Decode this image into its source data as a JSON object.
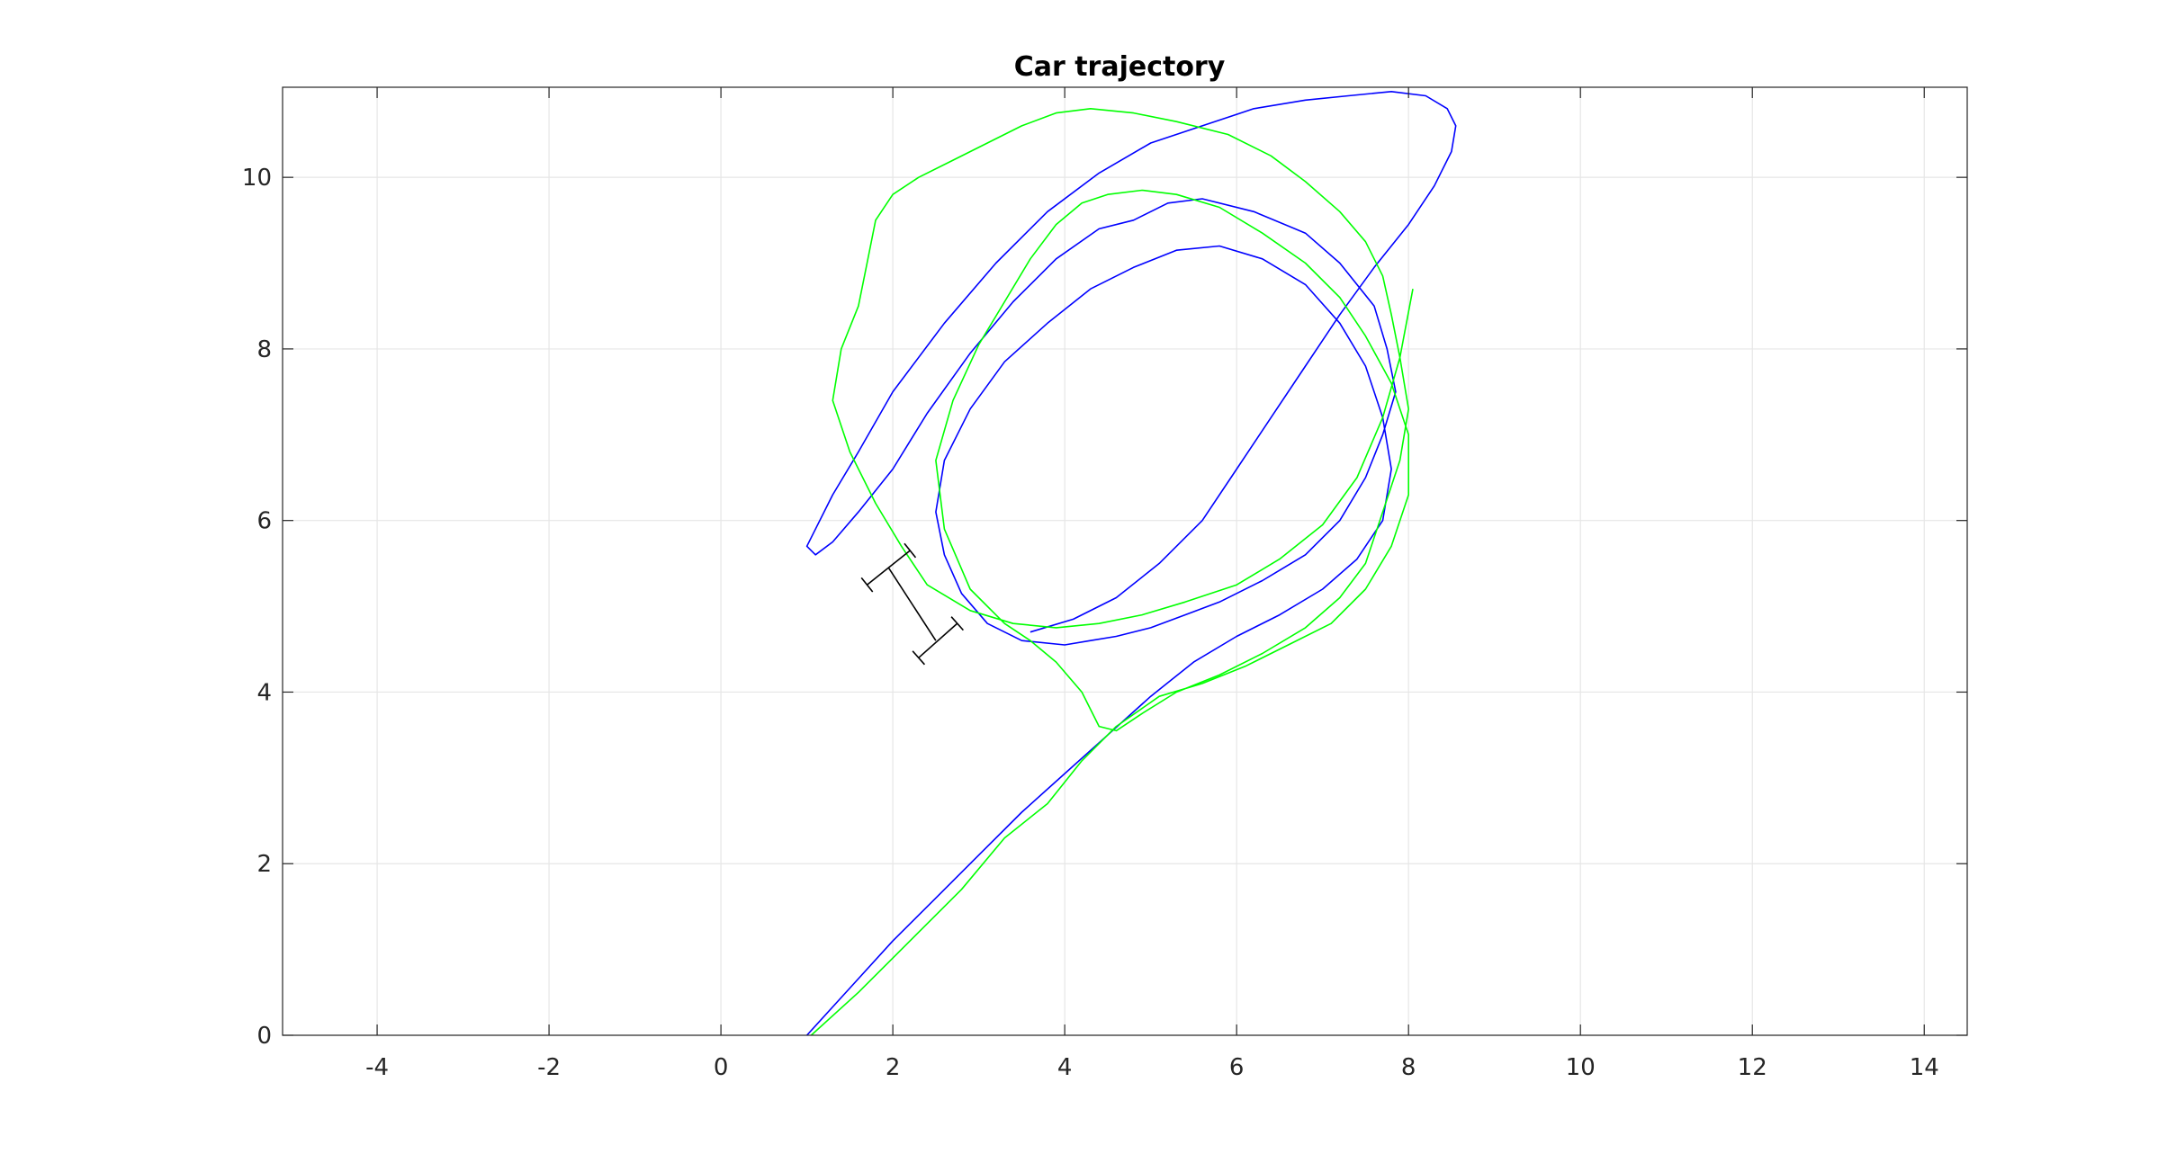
{
  "chart_data": {
    "type": "line",
    "title": "Car trajectory",
    "xlabel": "",
    "ylabel": "",
    "xlim": [
      -5.1,
      14.5
    ],
    "ylim": [
      0,
      11.05
    ],
    "xticks": [
      -4,
      -2,
      0,
      2,
      4,
      6,
      8,
      10,
      12,
      14
    ],
    "yticks": [
      0,
      2,
      4,
      6,
      8,
      10
    ],
    "grid": true,
    "legend": "none",
    "colors": {
      "blue_series": "#0000ff",
      "green_series": "#00ff00",
      "car": "#000000",
      "axes": "#262626",
      "grid": "#e6e6e6"
    },
    "series": [
      {
        "color": "#0000ff",
        "x": [
          1.0,
          1.5,
          2.0,
          2.5,
          3.0,
          3.5,
          4.0,
          4.5,
          5.0,
          5.5,
          6.0,
          6.5,
          7.0,
          7.4,
          7.7,
          7.8,
          7.7,
          7.5,
          7.2,
          6.8,
          6.3,
          5.8,
          5.3,
          4.8,
          4.3,
          3.8,
          3.3,
          2.9,
          2.6,
          2.5,
          2.6,
          2.8,
          3.1,
          3.5,
          4.0,
          4.3,
          4.6,
          5.0,
          5.4,
          5.8,
          6.3,
          6.8,
          7.2,
          7.5,
          7.7,
          7.85,
          7.75,
          7.6,
          7.2,
          6.8,
          6.2,
          5.6,
          5.2,
          4.8,
          4.4,
          3.9,
          3.4,
          2.9,
          2.4,
          2.0,
          1.6,
          1.3,
          1.1,
          1.0,
          1.1,
          1.3,
          1.6,
          2.0,
          2.6,
          3.2,
          3.8,
          4.4,
          5.0,
          5.6,
          6.2,
          6.8,
          7.3,
          7.8,
          8.2,
          8.45,
          8.55,
          8.5,
          8.3,
          8.0,
          7.6,
          7.2,
          6.8,
          6.4,
          6.0,
          5.6,
          5.1,
          4.6,
          4.1,
          3.6
        ],
        "y": [
          0.0,
          0.55,
          1.1,
          1.6,
          2.1,
          2.6,
          3.05,
          3.5,
          3.95,
          4.35,
          4.65,
          4.9,
          5.2,
          5.55,
          6.0,
          6.6,
          7.2,
          7.8,
          8.3,
          8.75,
          9.05,
          9.2,
          9.15,
          8.95,
          8.7,
          8.3,
          7.85,
          7.3,
          6.7,
          6.1,
          5.6,
          5.15,
          4.8,
          4.6,
          4.55,
          4.6,
          4.65,
          4.75,
          4.9,
          5.05,
          5.3,
          5.6,
          6.0,
          6.5,
          7.0,
          7.5,
          8.0,
          8.5,
          9.0,
          9.35,
          9.6,
          9.75,
          9.7,
          9.5,
          9.4,
          9.05,
          8.55,
          7.95,
          7.25,
          6.6,
          6.1,
          5.75,
          5.6,
          5.7,
          5.9,
          6.3,
          6.8,
          7.5,
          8.3,
          9.0,
          9.6,
          10.05,
          10.4,
          10.6,
          10.8,
          10.9,
          10.95,
          11.0,
          10.95,
          10.8,
          10.6,
          10.3,
          9.9,
          9.45,
          8.95,
          8.4,
          7.8,
          7.2,
          6.6,
          6.0,
          5.5,
          5.1,
          4.85,
          4.7
        ]
      },
      {
        "color": "#00ff00",
        "x": [
          1.05,
          1.6,
          2.2,
          2.8,
          3.3,
          3.8,
          4.2,
          4.6,
          5.1,
          5.6,
          6.1,
          6.6,
          7.1,
          7.5,
          7.8,
          8.0,
          8.0,
          7.8,
          7.5,
          7.2,
          6.8,
          6.3,
          5.8,
          5.3,
          4.9,
          4.5,
          4.2,
          3.9,
          3.6,
          3.3,
          3.0,
          2.7,
          2.5,
          2.6,
          2.9,
          3.3,
          3.6,
          3.9,
          4.2,
          4.4,
          4.6,
          4.9,
          5.3,
          5.8,
          6.3,
          6.8,
          7.2,
          7.5,
          7.7,
          7.9,
          8.0,
          7.9,
          7.8,
          7.7,
          7.5,
          7.2,
          6.8,
          6.4,
          5.9,
          5.3,
          4.8,
          4.3,
          3.9,
          3.5,
          3.1,
          2.7,
          2.3,
          2.0,
          1.8,
          1.7,
          1.6,
          1.4,
          1.3,
          1.5,
          1.8,
          2.1,
          2.4,
          2.9,
          3.4,
          3.9,
          4.4,
          4.9,
          5.4,
          6.0,
          6.5,
          7.0,
          7.4,
          7.7,
          7.9,
          8.05
        ],
        "y": [
          0.0,
          0.5,
          1.1,
          1.7,
          2.3,
          2.7,
          3.2,
          3.6,
          3.95,
          4.1,
          4.3,
          4.55,
          4.8,
          5.2,
          5.7,
          6.3,
          7.0,
          7.6,
          8.15,
          8.6,
          9.0,
          9.35,
          9.65,
          9.8,
          9.85,
          9.8,
          9.7,
          9.45,
          9.05,
          8.55,
          8.05,
          7.4,
          6.7,
          5.9,
          5.2,
          4.8,
          4.6,
          4.35,
          4.0,
          3.6,
          3.55,
          3.75,
          4.0,
          4.2,
          4.45,
          4.75,
          5.1,
          5.5,
          6.1,
          6.7,
          7.3,
          7.9,
          8.4,
          8.85,
          9.25,
          9.6,
          9.95,
          10.25,
          10.5,
          10.65,
          10.75,
          10.8,
          10.75,
          10.6,
          10.4,
          10.2,
          10.0,
          9.8,
          9.5,
          9.0,
          8.5,
          8.0,
          7.4,
          6.8,
          6.2,
          5.7,
          5.25,
          4.95,
          4.8,
          4.75,
          4.8,
          4.9,
          5.05,
          5.25,
          5.55,
          5.95,
          6.5,
          7.2,
          7.9,
          8.7
        ]
      }
    ],
    "car": {
      "rear_axle": [
        [
          1.7,
          5.25
        ],
        [
          2.2,
          5.65
        ]
      ],
      "front_axle": [
        [
          2.3,
          4.4
        ],
        [
          2.75,
          4.8
        ]
      ],
      "body": [
        [
          1.95,
          5.45
        ],
        [
          2.5,
          4.6
        ]
      ]
    }
  }
}
